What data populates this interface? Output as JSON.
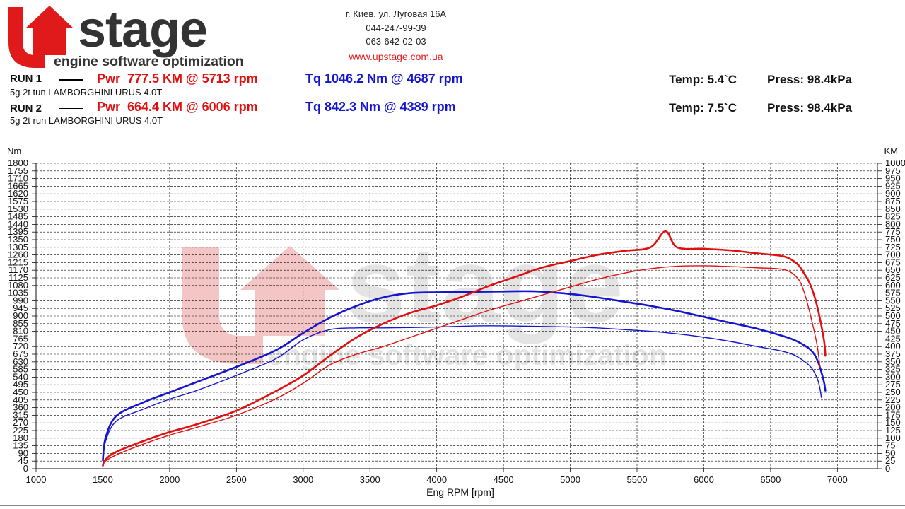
{
  "header": {
    "logo_text": "Upstage",
    "logo_tagline": "engine software optimization",
    "address": "г. Киев, ул. Луговая 16А",
    "phone1": "044-247-99-39",
    "phone2": "063-642-02-03",
    "website": "www.upstage.com.ua"
  },
  "runs": [
    {
      "label": "RUN 1",
      "desc": "5g 2t tun LAMBORGHINI URUS 4.0T",
      "pwr": "Pwr  777.5 KM @ 5713 rpm",
      "tq": "Tq 1046.2 Nm @ 4687 rpm",
      "temp": "Temp: 5.4`C",
      "press": "Press: 98.4kPa"
    },
    {
      "label": "RUN 2",
      "desc": "5g 2t run LAMBORGHINI URUS 4.0T",
      "pwr": "Pwr  664.4 KM @ 6006 rpm",
      "tq": "Tq 842.3 Nm @ 4389 rpm",
      "temp": "Temp: 7.5`C",
      "press": "Press: 98.4kPa"
    }
  ],
  "colors": {
    "power": "#e01010",
    "torque": "#1515d0",
    "grid": "#000000",
    "watermark": "#e4e4e4",
    "watermark_red": "#f3c5c5"
  },
  "chart_data": {
    "type": "line",
    "xlabel": "Eng RPM [rpm]",
    "ylabel_left": "Nm",
    "ylabel_right": "KM",
    "xlim": [
      1000,
      7300
    ],
    "ylim_left": [
      0,
      1800
    ],
    "ylim_right": [
      0,
      1000
    ],
    "x_ticks": [
      1000,
      1500,
      2000,
      2500,
      3000,
      3500,
      4000,
      4500,
      5000,
      5500,
      6000,
      6500,
      7000
    ],
    "grid": true,
    "series": [
      {
        "run": "RUN 1",
        "quantity": "Tq",
        "axis": "left",
        "color": "#1515d0",
        "width": 2.6,
        "x": [
          1500,
          1520,
          1600,
          1800,
          2000,
          2200,
          2500,
          2800,
          3000,
          3200,
          3400,
          3600,
          3800,
          4000,
          4200,
          4400,
          4600,
          4687,
          4800,
          5000,
          5200,
          5400,
          5600,
          5800,
          6000,
          6200,
          6400,
          6600,
          6700,
          6800,
          6850,
          6880,
          6900,
          6910
        ],
        "y": [
          50,
          180,
          310,
          390,
          450,
          510,
          600,
          700,
          800,
          890,
          960,
          1010,
          1035,
          1040,
          1042,
          1044,
          1046,
          1046.2,
          1043,
          1030,
          1010,
          985,
          960,
          930,
          895,
          860,
          825,
          780,
          750,
          700,
          640,
          570,
          510,
          460
        ]
      },
      {
        "run": "RUN 2",
        "quantity": "Tq",
        "axis": "left",
        "color": "#1515d0",
        "width": 1.4,
        "x": [
          1500,
          1520,
          1600,
          1800,
          2000,
          2200,
          2500,
          2800,
          3000,
          3200,
          3400,
          3600,
          3800,
          4000,
          4200,
          4389,
          4600,
          4800,
          5000,
          5200,
          5400,
          5600,
          5800,
          6000,
          6200,
          6400,
          6600,
          6700,
          6800,
          6850,
          6870,
          6880
        ],
        "y": [
          50,
          160,
          280,
          350,
          410,
          460,
          550,
          650,
          760,
          820,
          830,
          830,
          832,
          835,
          840,
          842.3,
          841,
          838,
          835,
          830,
          820,
          810,
          795,
          775,
          750,
          720,
          690,
          660,
          600,
          530,
          470,
          420
        ]
      },
      {
        "run": "RUN 1",
        "quantity": "Pwr",
        "axis": "right",
        "color": "#e01010",
        "width": 2.6,
        "x": [
          1500,
          1520,
          1600,
          1800,
          2000,
          2200,
          2500,
          2800,
          3000,
          3200,
          3400,
          3600,
          3800,
          4000,
          4200,
          4400,
          4600,
          4800,
          5000,
          5200,
          5400,
          5600,
          5713,
          5800,
          6000,
          6200,
          6400,
          6600,
          6700,
          6750,
          6800,
          6850,
          6900,
          6910
        ],
        "y": [
          10,
          30,
          55,
          90,
          120,
          145,
          190,
          255,
          305,
          370,
          430,
          475,
          510,
          535,
          565,
          600,
          630,
          660,
          680,
          700,
          713,
          725,
          777.5,
          725,
          720,
          715,
          705,
          695,
          670,
          640,
          600,
          530,
          420,
          370
        ]
      },
      {
        "run": "RUN 2",
        "quantity": "Pwr",
        "axis": "right",
        "color": "#e01010",
        "width": 1.4,
        "x": [
          1500,
          1520,
          1600,
          1800,
          2000,
          2200,
          2500,
          2800,
          3000,
          3200,
          3400,
          3600,
          3800,
          4000,
          4200,
          4400,
          4600,
          4800,
          5000,
          5200,
          5400,
          5600,
          5800,
          6006,
          6200,
          6400,
          6600,
          6700,
          6750,
          6800,
          6850,
          6870
        ],
        "y": [
          10,
          25,
          45,
          80,
          110,
          135,
          175,
          230,
          280,
          340,
          375,
          400,
          430,
          460,
          490,
          520,
          545,
          570,
          595,
          620,
          640,
          655,
          663,
          664.4,
          662,
          658,
          652,
          625,
          580,
          500,
          400,
          330
        ]
      }
    ]
  }
}
